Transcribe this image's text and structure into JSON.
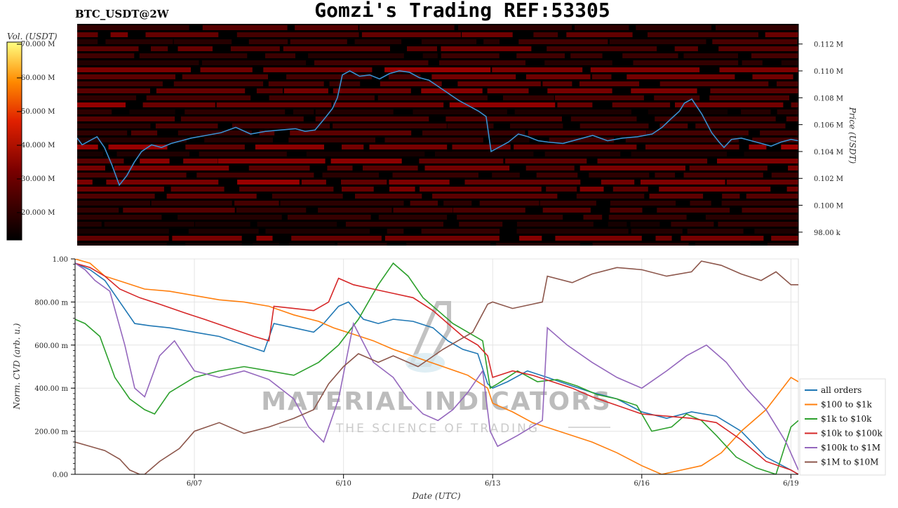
{
  "header": {
    "pair_label": "BTC_USDT@2W",
    "title": "Gomzi's Trading REF:53305"
  },
  "watermark": {
    "brand": "MATERIAL INDICATORS",
    "tagline": "THE SCIENCE OF TRADING"
  },
  "colors": {
    "heatmap_bg": "#000000",
    "price_line": "#3a8fd0",
    "all_orders": "#1f77b4",
    "usd100_1k": "#ff7f0e",
    "usd1k_10k": "#2ca02c",
    "usd10k_100k": "#d62728",
    "usd100k_1m": "#9467bd",
    "usd1m_10m": "#8c564b"
  },
  "chart_data": [
    {
      "type": "heatmap",
      "name": "order-book-heatmap",
      "colorbar": {
        "label": "Vol. (USDT)",
        "ticks": [
          "70.000 M",
          "60.000 M",
          "50.000 M",
          "40.000 M",
          "30.000 M",
          "20.000 M"
        ]
      },
      "ylabel": "Price (USDT)",
      "y_ticks": [
        "0.112 M",
        "0.110 M",
        "0.108 M",
        "0.106 M",
        "0.104 M",
        "0.102 M",
        "0.100 M",
        "98.00 k"
      ],
      "y_tick_values": [
        112000,
        110000,
        108000,
        106000,
        104000,
        102000,
        100000,
        98000
      ],
      "ylim": [
        97000,
        113500
      ],
      "x_range_days": [
        4.6,
        19.15
      ],
      "price_series": {
        "x": [
          4.6,
          4.7,
          4.85,
          5.0,
          5.15,
          5.3,
          5.45,
          5.6,
          5.75,
          5.9,
          6.1,
          6.3,
          6.5,
          6.7,
          6.9,
          7.2,
          7.5,
          7.8,
          8.1,
          8.4,
          8.7,
          9.0,
          9.2,
          9.4,
          9.6,
          9.75,
          9.85,
          9.95,
          10.1,
          10.3,
          10.5,
          10.7,
          10.9,
          11.1,
          11.3,
          11.5,
          11.7,
          11.9,
          12.1,
          12.3,
          12.5,
          12.7,
          12.85,
          12.95,
          13.1,
          13.3,
          13.5,
          13.7,
          13.9,
          14.1,
          14.4,
          14.7,
          15.0,
          15.3,
          15.6,
          15.9,
          16.2,
          16.4,
          16.6,
          16.75,
          16.85,
          17.0,
          17.2,
          17.4,
          17.55,
          17.65,
          17.8,
          18.0,
          18.2,
          18.4,
          18.6,
          18.8,
          19.0,
          19.15
        ],
        "y": [
          105000,
          104500,
          104800,
          105100,
          104300,
          103000,
          101500,
          102200,
          103200,
          104000,
          104500,
          104300,
          104600,
          104800,
          105000,
          105200,
          105400,
          105800,
          105300,
          105500,
          105600,
          105700,
          105500,
          105600,
          106500,
          107200,
          108000,
          109700,
          110000,
          109600,
          109700,
          109400,
          109800,
          110000,
          109900,
          109500,
          109300,
          108800,
          108300,
          107800,
          107400,
          107000,
          106600,
          104000,
          104300,
          104700,
          105300,
          105100,
          104800,
          104700,
          104600,
          104900,
          105200,
          104800,
          105000,
          105100,
          105300,
          105800,
          106500,
          107000,
          107600,
          107900,
          106800,
          105400,
          104700,
          104300,
          104900,
          105000,
          104800,
          104600,
          104400,
          104700,
          104900,
          104800
        ]
      }
    },
    {
      "type": "line",
      "name": "normalized-cvd",
      "xlabel": "Date (UTC)",
      "ylabel": "Norm. CVD (arb. u.)",
      "ylim": [
        0,
        1
      ],
      "xlim": [
        4.6,
        19.15
      ],
      "y_ticks": [
        "0.00",
        "200.00 m",
        "400.00 m",
        "600.00 m",
        "800.00 m",
        "1.00"
      ],
      "y_tick_values": [
        0,
        0.2,
        0.4,
        0.6,
        0.8,
        1.0
      ],
      "x_ticks": [
        "6/07",
        "6/10",
        "6/13",
        "6/16",
        "6/19"
      ],
      "x_tick_values": [
        7,
        10,
        13,
        16,
        19
      ],
      "legend_position": "right",
      "series": [
        {
          "name": "all orders",
          "color_key": "all_orders",
          "x": [
            4.6,
            4.9,
            5.2,
            5.5,
            5.8,
            6.1,
            6.5,
            7.0,
            7.5,
            8.0,
            8.4,
            8.6,
            9.0,
            9.4,
            9.6,
            9.9,
            10.1,
            10.4,
            10.7,
            11.0,
            11.4,
            11.8,
            12.1,
            12.4,
            12.7,
            12.9,
            13.0,
            13.3,
            13.7,
            14.1,
            14.6,
            15.0,
            15.5,
            16.0,
            16.5,
            17.0,
            17.5,
            18.0,
            18.5,
            19.0,
            19.15
          ],
          "y": [
            0.98,
            0.95,
            0.9,
            0.8,
            0.7,
            0.69,
            0.68,
            0.66,
            0.64,
            0.6,
            0.57,
            0.7,
            0.68,
            0.66,
            0.7,
            0.78,
            0.8,
            0.72,
            0.7,
            0.72,
            0.71,
            0.68,
            0.62,
            0.58,
            0.56,
            0.42,
            0.4,
            0.43,
            0.48,
            0.45,
            0.41,
            0.38,
            0.35,
            0.29,
            0.26,
            0.29,
            0.27,
            0.2,
            0.08,
            0.02,
            0.0
          ]
        },
        {
          "name": "$100 to $1k",
          "color_key": "usd100_1k",
          "x": [
            4.6,
            4.9,
            5.2,
            5.6,
            6.0,
            6.5,
            7.0,
            7.5,
            8.0,
            8.5,
            9.0,
            9.5,
            9.8,
            10.2,
            10.6,
            11.0,
            11.5,
            12.0,
            12.5,
            12.9,
            13.0,
            13.4,
            13.8,
            14.2,
            14.6,
            15.0,
            15.5,
            16.0,
            16.4,
            16.8,
            17.2,
            17.6,
            18.0,
            18.5,
            19.0,
            19.15
          ],
          "y": [
            1.0,
            0.98,
            0.92,
            0.89,
            0.86,
            0.85,
            0.83,
            0.81,
            0.8,
            0.78,
            0.74,
            0.71,
            0.68,
            0.65,
            0.62,
            0.58,
            0.54,
            0.5,
            0.46,
            0.4,
            0.33,
            0.29,
            0.24,
            0.21,
            0.18,
            0.15,
            0.1,
            0.04,
            0.0,
            0.02,
            0.04,
            0.1,
            0.2,
            0.3,
            0.45,
            0.43
          ]
        },
        {
          "name": "$1k to $10k",
          "color_key": "usd1k_10k",
          "x": [
            4.6,
            4.8,
            5.1,
            5.4,
            5.7,
            6.0,
            6.2,
            6.5,
            7.0,
            7.5,
            8.0,
            8.5,
            9.0,
            9.5,
            9.9,
            10.3,
            10.7,
            11.0,
            11.3,
            11.6,
            11.9,
            12.2,
            12.5,
            12.8,
            12.95,
            13.1,
            13.5,
            13.9,
            14.3,
            14.7,
            15.1,
            15.5,
            15.9,
            16.2,
            16.6,
            16.9,
            17.2,
            17.5,
            17.9,
            18.3,
            18.7,
            19.0,
            19.15
          ],
          "y": [
            0.72,
            0.7,
            0.64,
            0.45,
            0.35,
            0.3,
            0.28,
            0.38,
            0.45,
            0.48,
            0.5,
            0.48,
            0.46,
            0.52,
            0.6,
            0.72,
            0.88,
            0.98,
            0.92,
            0.82,
            0.76,
            0.7,
            0.66,
            0.62,
            0.4,
            0.42,
            0.48,
            0.43,
            0.44,
            0.41,
            0.37,
            0.35,
            0.32,
            0.2,
            0.22,
            0.28,
            0.25,
            0.18,
            0.08,
            0.03,
            0.0,
            0.22,
            0.25
          ]
        },
        {
          "name": "$10k to $100k",
          "color_key": "usd10k_100k",
          "x": [
            4.6,
            4.9,
            5.2,
            5.5,
            5.9,
            6.3,
            6.8,
            7.2,
            7.7,
            8.2,
            8.5,
            8.6,
            9.0,
            9.4,
            9.7,
            9.9,
            10.2,
            10.6,
            11.0,
            11.4,
            11.8,
            12.1,
            12.4,
            12.7,
            12.9,
            13.0,
            13.4,
            13.8,
            14.2,
            14.6,
            15.0,
            15.5,
            16.0,
            16.5,
            17.0,
            17.5,
            18.0,
            18.5,
            19.0,
            19.15
          ],
          "y": [
            0.98,
            0.96,
            0.92,
            0.86,
            0.82,
            0.79,
            0.75,
            0.72,
            0.68,
            0.64,
            0.62,
            0.78,
            0.77,
            0.76,
            0.8,
            0.91,
            0.88,
            0.86,
            0.84,
            0.82,
            0.76,
            0.7,
            0.64,
            0.6,
            0.55,
            0.45,
            0.48,
            0.46,
            0.43,
            0.4,
            0.36,
            0.32,
            0.28,
            0.27,
            0.26,
            0.24,
            0.16,
            0.06,
            0.02,
            0.0
          ]
        },
        {
          "name": "$100k to $1M",
          "color_key": "usd100k_1m",
          "x": [
            4.6,
            4.8,
            5.0,
            5.3,
            5.6,
            5.8,
            6.0,
            6.3,
            6.6,
            7.0,
            7.5,
            8.0,
            8.5,
            9.0,
            9.3,
            9.6,
            9.9,
            10.2,
            10.6,
            11.0,
            11.3,
            11.6,
            11.9,
            12.2,
            12.5,
            12.8,
            12.95,
            13.1,
            13.5,
            14.0,
            14.1,
            14.5,
            15.0,
            15.5,
            16.0,
            16.5,
            16.9,
            17.3,
            17.7,
            18.1,
            18.5,
            18.9,
            19.15
          ],
          "y": [
            0.98,
            0.95,
            0.9,
            0.85,
            0.6,
            0.4,
            0.36,
            0.55,
            0.62,
            0.48,
            0.45,
            0.48,
            0.44,
            0.35,
            0.22,
            0.15,
            0.35,
            0.7,
            0.52,
            0.45,
            0.35,
            0.28,
            0.25,
            0.3,
            0.38,
            0.48,
            0.2,
            0.13,
            0.18,
            0.25,
            0.68,
            0.6,
            0.52,
            0.45,
            0.4,
            0.48,
            0.55,
            0.6,
            0.52,
            0.4,
            0.3,
            0.15,
            0.02
          ]
        },
        {
          "name": "$1M to $10M",
          "color_key": "usd1m_10m",
          "x": [
            4.6,
            4.9,
            5.2,
            5.5,
            5.7,
            5.9,
            6.0,
            6.3,
            6.7,
            7.0,
            7.5,
            8.0,
            8.5,
            9.0,
            9.4,
            9.7,
            10.0,
            10.3,
            10.7,
            11.0,
            11.5,
            12.0,
            12.3,
            12.6,
            12.9,
            13.0,
            13.4,
            13.8,
            14.0,
            14.1,
            14.6,
            15.0,
            15.5,
            16.0,
            16.5,
            17.0,
            17.2,
            17.6,
            18.0,
            18.4,
            18.7,
            19.0,
            19.15
          ],
          "y": [
            0.15,
            0.13,
            0.11,
            0.07,
            0.02,
            0.0,
            0.0,
            0.06,
            0.12,
            0.2,
            0.24,
            0.19,
            0.22,
            0.26,
            0.3,
            0.42,
            0.5,
            0.56,
            0.52,
            0.55,
            0.5,
            0.58,
            0.62,
            0.66,
            0.79,
            0.8,
            0.77,
            0.79,
            0.8,
            0.92,
            0.89,
            0.93,
            0.96,
            0.95,
            0.92,
            0.94,
            0.99,
            0.97,
            0.93,
            0.9,
            0.94,
            0.88,
            0.88
          ]
        }
      ]
    }
  ]
}
